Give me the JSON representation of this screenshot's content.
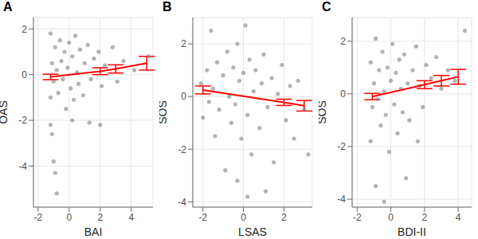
{
  "chart_data": [
    {
      "type": "scatter",
      "title": "A",
      "x_label": "BAI",
      "y_label": "OAS",
      "xlim": [
        -2.3,
        5.4
      ],
      "ylim": [
        -5.8,
        2.5
      ],
      "xticks": [
        -2,
        0,
        2,
        4
      ],
      "yticks": [
        -4,
        -2,
        0,
        2
      ],
      "grid": true,
      "series": [
        {
          "type": "scatter",
          "color": "#808080",
          "x": [
            -1.2,
            -1.1,
            -1.0,
            -1.2,
            -0.9,
            -0.8,
            -1.1,
            -0.7,
            -0.6,
            -0.5,
            -0.4,
            -0.3,
            -0.2,
            -0.1,
            0.0,
            0.1,
            0.2,
            0.3,
            0.4,
            0.5,
            0.6,
            0.7,
            0.9,
            1.0,
            1.2,
            1.4,
            1.6,
            1.9,
            2.1,
            2.3,
            2.8,
            3.1,
            3.5,
            4.2,
            5.1,
            -1.0,
            -0.9,
            -0.8,
            -1.2,
            0.2,
            1.3,
            2.0
          ],
          "values": [
            1.8,
            0.5,
            -0.3,
            -1.0,
            1.2,
            0.2,
            -2.6,
            -0.8,
            1.5,
            0.6,
            -0.2,
            1.0,
            -1.5,
            0.3,
            1.4,
            -0.6,
            0.8,
            -1.1,
            1.7,
            0.1,
            -0.4,
            1.1,
            -0.9,
            0.5,
            1.3,
            -0.2,
            0.7,
            1.0,
            -0.5,
            0.4,
            1.2,
            -0.3,
            0.6,
            0.2,
            0.8,
            -3.8,
            -4.3,
            -5.2,
            -2.2,
            -2.0,
            -2.1,
            -2.2
          ]
        },
        {
          "type": "line",
          "color": "#ff0000",
          "x": [
            -1.2,
            2,
            3,
            5
          ],
          "values": [
            -0.1,
            0.15,
            0.25,
            0.5
          ],
          "error": [
            0.12,
            0.15,
            0.18,
            0.3
          ]
        }
      ]
    },
    {
      "type": "scatter",
      "title": "B",
      "x_label": "LSAS",
      "y_label": "SOS",
      "xlim": [
        -2.5,
        3.4
      ],
      "ylim": [
        -4.2,
        3
      ],
      "xticks": [
        -2,
        0,
        2
      ],
      "yticks": [
        -4,
        -2,
        0,
        2
      ],
      "grid": true,
      "series": [
        {
          "type": "scatter",
          "color": "#808080",
          "x": [
            -2.1,
            -2.0,
            -1.8,
            -1.7,
            -1.6,
            -1.5,
            -1.4,
            -1.3,
            -1.2,
            -1.0,
            -0.9,
            -0.8,
            -0.7,
            -0.6,
            -0.5,
            -0.4,
            -0.3,
            -0.2,
            -0.1,
            0.0,
            0.1,
            0.2,
            0.3,
            0.4,
            0.5,
            0.6,
            0.8,
            0.9,
            1.0,
            1.2,
            1.4,
            1.5,
            1.7,
            1.9,
            2.1,
            2.3,
            2.5,
            2.7,
            3.0,
            3.2,
            0.2,
            -0.3,
            1.1
          ],
          "values": [
            0.5,
            -0.8,
            1.0,
            -0.2,
            2.5,
            0.3,
            -1.5,
            1.3,
            -0.5,
            0.8,
            -2.8,
            1.7,
            0.0,
            -1.0,
            1.1,
            -0.3,
            2.0,
            0.6,
            -1.6,
            0.9,
            2.7,
            -0.7,
            1.4,
            -2.2,
            0.2,
            1.0,
            -1.2,
            0.5,
            1.6,
            -0.4,
            0.7,
            -2.5,
            0.1,
            1.2,
            -0.9,
            0.4,
            -1.6,
            0.6,
            -0.5,
            -2.2,
            -3.8,
            -3.2,
            -3.6
          ]
        },
        {
          "type": "line",
          "color": "#ff0000",
          "x": [
            -2,
            2,
            3
          ],
          "values": [
            0.25,
            -0.22,
            -0.35
          ],
          "error": [
            0.15,
            0.12,
            0.2
          ]
        }
      ]
    },
    {
      "type": "scatter",
      "title": "C",
      "x_label": "BDI-II",
      "y_label": "SOS",
      "xlim": [
        -2.3,
        4.8
      ],
      "ylim": [
        -4.3,
        2.9
      ],
      "xticks": [
        -2,
        0,
        2,
        4
      ],
      "yticks": [
        -4,
        -2,
        0,
        2
      ],
      "grid": true,
      "series": [
        {
          "type": "scatter",
          "color": "#808080",
          "x": [
            -1.2,
            -1.1,
            -1.0,
            -1.2,
            -0.9,
            -0.8,
            -0.7,
            -0.6,
            -0.5,
            -0.4,
            -0.3,
            -0.2,
            -0.1,
            0.0,
            0.1,
            0.2,
            0.3,
            0.4,
            0.5,
            0.6,
            0.7,
            0.8,
            1.0,
            1.1,
            1.3,
            1.5,
            1.7,
            1.9,
            2.1,
            2.4,
            2.7,
            3.0,
            3.4,
            3.8,
            4.4,
            -0.9,
            -0.4,
            0.9,
            1.6
          ],
          "values": [
            1.2,
            -0.5,
            0.4,
            -1.8,
            2.1,
            -0.2,
            0.9,
            -1.2,
            1.6,
            0.1,
            -0.8,
            1.0,
            -2.2,
            0.5,
            1.9,
            -0.4,
            0.8,
            -1.5,
            1.3,
            0.2,
            -0.7,
            1.5,
            0.4,
            -1.0,
            0.9,
            1.8,
            0.3,
            -0.5,
            1.1,
            0.6,
            1.4,
            0.2,
            0.9,
            0.5,
            2.4,
            -3.5,
            -4.1,
            -3.2,
            -1.8
          ]
        },
        {
          "type": "line",
          "color": "#ff0000",
          "x": [
            -1.1,
            2,
            3,
            4
          ],
          "values": [
            -0.1,
            0.35,
            0.5,
            0.65
          ],
          "error": [
            0.12,
            0.15,
            0.2,
            0.28
          ]
        }
      ]
    }
  ]
}
